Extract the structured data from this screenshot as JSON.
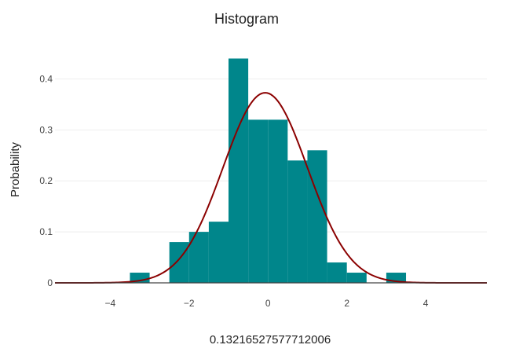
{
  "chart_data": {
    "type": "bar",
    "title": "Histogram",
    "xlabel": "0.13216527577712006",
    "ylabel": "Probability",
    "xlim": [
      -5.4,
      5.55
    ],
    "ylim": [
      0,
      0.45
    ],
    "x_ticks": [
      -4,
      -2,
      0,
      2,
      4
    ],
    "x_tick_labels": [
      "−4",
      "−2",
      "0",
      "2",
      "4"
    ],
    "y_ticks": [
      0,
      0.1,
      0.2,
      0.3,
      0.4
    ],
    "y_tick_labels": [
      "0",
      "0.1",
      "0.2",
      "0.3",
      "0.4"
    ],
    "grid": true,
    "colors": {
      "bars": "#00868B",
      "curve": "#8B0000",
      "grid": "#eeeeee",
      "baseline": "#444444"
    },
    "bins": [
      {
        "x0": -3.5,
        "x1": -3.0,
        "y": 0.02
      },
      {
        "x0": -2.5,
        "x1": -2.0,
        "y": 0.08
      },
      {
        "x0": -2.0,
        "x1": -1.5,
        "y": 0.1
      },
      {
        "x0": -1.5,
        "x1": -1.0,
        "y": 0.12
      },
      {
        "x0": -1.0,
        "x1": -0.5,
        "y": 0.44
      },
      {
        "x0": -0.5,
        "x1": 0.0,
        "y": 0.32
      },
      {
        "x0": 0.0,
        "x1": 0.5,
        "y": 0.32
      },
      {
        "x0": 0.5,
        "x1": 1.0,
        "y": 0.24
      },
      {
        "x0": 1.0,
        "x1": 1.5,
        "y": 0.26
      },
      {
        "x0": 1.5,
        "x1": 2.0,
        "y": 0.04
      },
      {
        "x0": 2.0,
        "x1": 2.5,
        "y": 0.02
      },
      {
        "x0": 3.0,
        "x1": 3.5,
        "y": 0.02
      }
    ],
    "density_curve": {
      "type": "normal",
      "mean": -0.07,
      "std": 1.07
    }
  }
}
